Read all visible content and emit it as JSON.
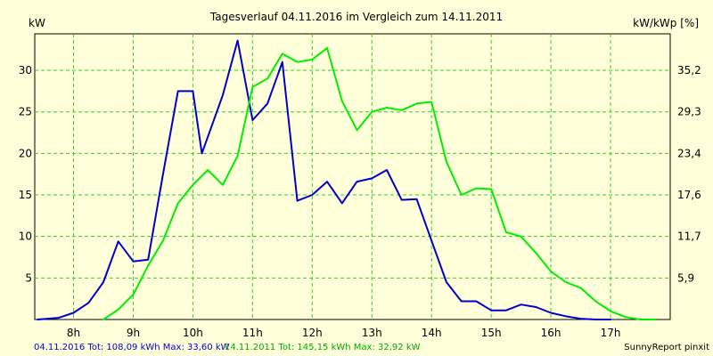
{
  "chart_data": {
    "type": "line",
    "title": "Tagesverlauf 04.11.2016 im Vergleich zum 14.11.2011",
    "ylabel_left": "kW",
    "ylabel_right": "kW/kWp [%]",
    "ylim": [
      0,
      34.4
    ],
    "yticks_left": [
      "5",
      "10",
      "15",
      "20",
      "25",
      "30"
    ],
    "yticks_right": [
      "5,9",
      "11,7",
      "17,6",
      "23,4",
      "29,3",
      "35,2"
    ],
    "xlim_hours": [
      7.35,
      18.0
    ],
    "xticks": [
      "8h",
      "9h",
      "10h",
      "11h",
      "12h",
      "13h",
      "14h",
      "15h",
      "16h",
      "17h"
    ],
    "grid": true,
    "series": [
      {
        "name": "04.11.2016",
        "color": "#0000cc",
        "x": [
          7.4,
          7.75,
          8.0,
          8.25,
          8.5,
          8.75,
          9.0,
          9.25,
          9.5,
          9.75,
          10.0,
          10.15,
          10.5,
          10.75,
          11.0,
          11.25,
          11.5,
          11.75,
          12.0,
          12.25,
          12.5,
          12.75,
          13.0,
          13.25,
          13.5,
          13.75,
          14.0,
          14.25,
          14.5,
          14.75,
          15.0,
          15.25,
          15.5,
          15.75,
          16.0,
          16.25,
          16.5,
          16.75,
          17.0
        ],
        "y": [
          0,
          0.2,
          0.8,
          2.0,
          4.5,
          9.4,
          7.0,
          7.2,
          17.5,
          27.5,
          27.5,
          20.0,
          27.0,
          33.6,
          24.0,
          26.0,
          31.0,
          14.3,
          15.0,
          16.6,
          14.0,
          16.6,
          17.0,
          18.0,
          14.4,
          14.5,
          9.5,
          4.5,
          2.2,
          2.2,
          1.1,
          1.1,
          1.8,
          1.5,
          0.8,
          0.4,
          0.1,
          0.0,
          0.0
        ]
      },
      {
        "name": "14.11.2011",
        "color": "#00ee00",
        "x": [
          8.5,
          8.75,
          9.0,
          9.25,
          9.5,
          9.75,
          10.0,
          10.25,
          10.5,
          10.75,
          11.0,
          11.25,
          11.5,
          11.75,
          12.0,
          12.25,
          12.5,
          12.75,
          13.0,
          13.25,
          13.5,
          13.75,
          14.0,
          14.25,
          14.5,
          14.75,
          15.0,
          15.25,
          15.5,
          15.75,
          16.0,
          16.25,
          16.5,
          16.75,
          17.0,
          17.25,
          17.5,
          17.75
        ],
        "y": [
          0,
          1.2,
          3.0,
          6.5,
          9.5,
          14.0,
          16.2,
          18.0,
          16.2,
          19.7,
          28.0,
          29.0,
          32.0,
          31.0,
          31.3,
          32.7,
          26.3,
          22.8,
          25.0,
          25.5,
          25.2,
          26.0,
          26.2,
          19.0,
          15.0,
          15.8,
          15.7,
          10.5,
          10.0,
          8.0,
          5.8,
          4.5,
          3.8,
          2.2,
          1.0,
          0.3,
          0.0,
          0.0
        ]
      }
    ],
    "footer": {
      "series_a": "04.11.2016 Tot: 108,09 kWh Max: 33,60 kW",
      "series_b": "14.11.2011 Tot: 145,15 kWh Max: 32,92 kW",
      "credit": "SunnyReport pinxit"
    }
  }
}
